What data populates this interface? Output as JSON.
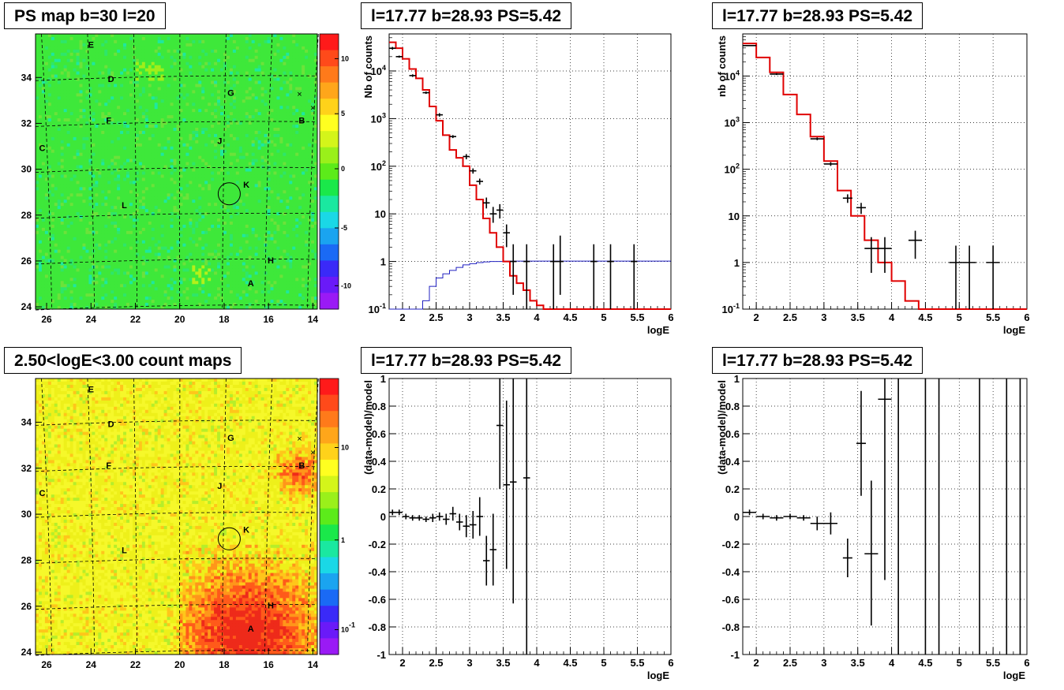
{
  "titles": {
    "map1": "PS map b=30 l=20",
    "spec1": "l=17.77 b=28.93 PS=5.42",
    "spec2": "l=17.77 b=28.93 PS=5.42",
    "map2": "2.50<logE<3.00 count maps",
    "res1": "l=17.77 b=28.93 PS=5.42",
    "res2": "l=17.77 b=28.93 PS=5.42"
  },
  "colors": {
    "model_line": "#e00000",
    "background_line": "#2020c0",
    "data_points": "#000000",
    "grid": "#000000"
  },
  "chart_data": [
    {
      "id": "map1",
      "type": "heatmap",
      "title": "PS map b=30 l=20",
      "x_ticks": [
        "26",
        "24",
        "22",
        "20",
        "18",
        "16",
        "14"
      ],
      "y_ticks": [
        "24",
        "26",
        "28",
        "30",
        "32",
        "34"
      ],
      "xlim": [
        26.5,
        13.8
      ],
      "ylim": [
        23.9,
        35.9
      ],
      "colorbar_ticks": [
        "10",
        "5",
        "0",
        "-5",
        "-10"
      ],
      "colorbar_range": [
        -13,
        13
      ],
      "dominant_color": "green",
      "sources": [
        {
          "label": "A",
          "l": 16.8,
          "b": 24.9
        },
        {
          "label": "B",
          "l": 14.5,
          "b": 32.0
        },
        {
          "label": "C",
          "l": 26.2,
          "b": 30.8
        },
        {
          "label": "D",
          "l": 23.1,
          "b": 33.8
        },
        {
          "label": "E",
          "l": 24.0,
          "b": 35.3
        },
        {
          "label": "F",
          "l": 23.2,
          "b": 32.0
        },
        {
          "label": "G",
          "l": 17.7,
          "b": 33.2
        },
        {
          "label": "H",
          "l": 15.9,
          "b": 25.9
        },
        {
          "label": "J",
          "l": 18.2,
          "b": 31.1
        },
        {
          "label": "K",
          "l": 17.0,
          "b": 29.2
        },
        {
          "label": "L",
          "l": 22.5,
          "b": 28.3
        }
      ],
      "circle": {
        "l": 17.77,
        "b": 28.93
      }
    },
    {
      "id": "spec1",
      "type": "line",
      "title": "l=17.77 b=28.93 PS=5.42",
      "xlabel": "logE",
      "ylabel": "Nb of counts",
      "xlim": [
        1.8,
        6.0
      ],
      "ylim": [
        0.1,
        60000
      ],
      "y_scale": "log",
      "x_ticks": [
        "2",
        "2.5",
        "3",
        "3.5",
        "4",
        "4.5",
        "5",
        "5.5",
        "6"
      ],
      "y_ticks": [
        "10^-1",
        "1",
        "10",
        "10^2",
        "10^3",
        "10^4"
      ],
      "grid": true,
      "model_series": {
        "name": "model",
        "edges": [
          1.8,
          1.9,
          2.0,
          2.1,
          2.2,
          2.3,
          2.4,
          2.5,
          2.6,
          2.7,
          2.8,
          2.9,
          3.0,
          3.1,
          3.2,
          3.3,
          3.4,
          3.5,
          3.6,
          3.7,
          3.8,
          3.9,
          4.0,
          4.1,
          4.2,
          4.3,
          6.0
        ],
        "values": [
          40000,
          30000,
          18000,
          11000,
          7000,
          4000,
          1800,
          900,
          450,
          220,
          150,
          100,
          40,
          20,
          8,
          4,
          2,
          1,
          0.5,
          0.35,
          0.25,
          0.15,
          0.12,
          0.1,
          0.1,
          0.1
        ]
      },
      "background_series": {
        "name": "background",
        "edges": [
          1.8,
          2.3,
          2.4,
          2.5,
          2.6,
          2.7,
          2.8,
          2.9,
          3.0,
          3.1,
          3.2,
          3.3,
          3.5,
          6.0
        ],
        "values": [
          0.1,
          0.15,
          0.3,
          0.45,
          0.55,
          0.65,
          0.75,
          0.85,
          0.9,
          0.95,
          0.98,
          1.0,
          1.02
        ]
      },
      "data_points": [
        {
          "x": 1.85,
          "y": 30000,
          "xerr": 0.05,
          "ylo": 28000,
          "yhi": 32000
        },
        {
          "x": 1.95,
          "y": 20000,
          "xerr": 0.05,
          "ylo": 19000,
          "yhi": 21000
        },
        {
          "x": 2.15,
          "y": 8000,
          "xerr": 0.05,
          "ylo": 7500,
          "yhi": 8500
        },
        {
          "x": 2.35,
          "y": 3500,
          "xerr": 0.05,
          "ylo": 3300,
          "yhi": 3700
        },
        {
          "x": 2.55,
          "y": 1200,
          "xerr": 0.05,
          "ylo": 1100,
          "yhi": 1300
        },
        {
          "x": 2.75,
          "y": 420,
          "xerr": 0.05,
          "ylo": 390,
          "yhi": 450
        },
        {
          "x": 2.95,
          "y": 160,
          "xerr": 0.05,
          "ylo": 140,
          "yhi": 180
        },
        {
          "x": 3.05,
          "y": 80,
          "xerr": 0.05,
          "ylo": 70,
          "yhi": 90
        },
        {
          "x": 3.15,
          "y": 48,
          "xerr": 0.05,
          "ylo": 41,
          "yhi": 55
        },
        {
          "x": 3.25,
          "y": 17,
          "xerr": 0.05,
          "ylo": 13,
          "yhi": 22
        },
        {
          "x": 3.35,
          "y": 10,
          "xerr": 0.05,
          "ylo": 6.5,
          "yhi": 14
        },
        {
          "x": 3.45,
          "y": 12,
          "xerr": 0.05,
          "ylo": 8,
          "yhi": 16
        },
        {
          "x": 3.55,
          "y": 4,
          "xerr": 0.05,
          "ylo": 2,
          "yhi": 6
        },
        {
          "x": 3.65,
          "y": 1,
          "xerr": 0.05,
          "ylo": 0.2,
          "yhi": 2.3
        },
        {
          "x": 3.85,
          "y": 1,
          "xerr": 0.05,
          "ylo": 0.1,
          "yhi": 2.3
        },
        {
          "x": 4.25,
          "y": 1,
          "xerr": 0.05,
          "ylo": 0.1,
          "yhi": 2.3
        },
        {
          "x": 4.35,
          "y": 1,
          "xerr": 0.05,
          "ylo": 0.2,
          "yhi": 3.5
        },
        {
          "x": 4.85,
          "y": 1,
          "xerr": 0.05,
          "ylo": 0.1,
          "yhi": 2.3
        },
        {
          "x": 5.1,
          "y": 1,
          "xerr": 0.05,
          "ylo": 0.1,
          "yhi": 2.3
        },
        {
          "x": 5.45,
          "y": 1,
          "xerr": 0.05,
          "ylo": 0.1,
          "yhi": 2.3
        }
      ]
    },
    {
      "id": "spec2",
      "type": "line",
      "title": "l=17.77 b=28.93 PS=5.42",
      "xlabel": "logE",
      "ylabel": "nb of counts",
      "xlim": [
        1.8,
        6.0
      ],
      "ylim": [
        0.1,
        80000
      ],
      "y_scale": "log",
      "x_ticks": [
        "2",
        "2.5",
        "3",
        "3.5",
        "4",
        "4.5",
        "5",
        "5.5",
        "6"
      ],
      "y_ticks": [
        "10^-1",
        "1",
        "10",
        "10^2",
        "10^3",
        "10^4"
      ],
      "grid": true,
      "model_series": {
        "name": "model",
        "edges": [
          1.8,
          2.0,
          2.2,
          2.4,
          2.6,
          2.8,
          3.0,
          3.2,
          3.4,
          3.6,
          3.8,
          4.0,
          4.2,
          4.4,
          6.0
        ],
        "values": [
          50000,
          25000,
          12000,
          4000,
          1500,
          500,
          150,
          35,
          10,
          3,
          1,
          0.4,
          0.15,
          0.1
        ]
      },
      "data_points": [
        {
          "x": 1.9,
          "y": 45000,
          "xerr": 0.1,
          "ylo": 44000,
          "yhi": 46000
        },
        {
          "x": 2.3,
          "y": 11000,
          "xerr": 0.1,
          "ylo": 10500,
          "yhi": 11500
        },
        {
          "x": 2.9,
          "y": 450,
          "xerr": 0.1,
          "ylo": 420,
          "yhi": 480
        },
        {
          "x": 3.1,
          "y": 130,
          "xerr": 0.1,
          "ylo": 118,
          "yhi": 142
        },
        {
          "x": 3.35,
          "y": 24,
          "xerr": 0.07,
          "ylo": 19,
          "yhi": 29
        },
        {
          "x": 3.55,
          "y": 15,
          "xerr": 0.07,
          "ylo": 11,
          "yhi": 19
        },
        {
          "x": 3.7,
          "y": 2,
          "xerr": 0.1,
          "ylo": 0.6,
          "yhi": 3.5
        },
        {
          "x": 3.9,
          "y": 2,
          "xerr": 0.1,
          "ylo": 0.6,
          "yhi": 3.5
        },
        {
          "x": 4.35,
          "y": 3,
          "xerr": 0.1,
          "ylo": 1.2,
          "yhi": 4.8
        },
        {
          "x": 4.95,
          "y": 1,
          "xerr": 0.1,
          "ylo": 0.1,
          "yhi": 2.3
        },
        {
          "x": 5.15,
          "y": 1,
          "xerr": 0.1,
          "ylo": 0.1,
          "yhi": 2.3
        },
        {
          "x": 5.5,
          "y": 1,
          "xerr": 0.1,
          "ylo": 0.1,
          "yhi": 2.3
        }
      ]
    },
    {
      "id": "map2",
      "type": "heatmap",
      "title": "2.50<logE<3.00 count maps",
      "x_ticks": [
        "26",
        "24",
        "22",
        "20",
        "18",
        "16",
        "14"
      ],
      "y_ticks": [
        "24",
        "26",
        "28",
        "30",
        "32",
        "34"
      ],
      "xlim": [
        26.5,
        13.8
      ],
      "ylim": [
        23.9,
        35.9
      ],
      "colorbar_ticks": [
        "10",
        "1",
        "10^-1"
      ],
      "colorbar_scale": "log",
      "dominant_color": "yellow",
      "sources": [
        {
          "label": "A",
          "l": 16.8,
          "b": 24.9
        },
        {
          "label": "B",
          "l": 14.5,
          "b": 32.0
        },
        {
          "label": "C",
          "l": 26.2,
          "b": 30.8
        },
        {
          "label": "D",
          "l": 23.1,
          "b": 33.8
        },
        {
          "label": "E",
          "l": 24.0,
          "b": 35.3
        },
        {
          "label": "F",
          "l": 23.2,
          "b": 32.0
        },
        {
          "label": "G",
          "l": 17.7,
          "b": 33.2
        },
        {
          "label": "H",
          "l": 15.9,
          "b": 25.9
        },
        {
          "label": "J",
          "l": 18.2,
          "b": 31.1
        },
        {
          "label": "K",
          "l": 17.0,
          "b": 29.2
        },
        {
          "label": "L",
          "l": 22.5,
          "b": 28.3
        }
      ],
      "circle": {
        "l": 17.77,
        "b": 28.93
      }
    },
    {
      "id": "res1",
      "type": "scatter",
      "title": "l=17.77 b=28.93 PS=5.42",
      "xlabel": "logE",
      "ylabel": "(data-model)/model",
      "xlim": [
        1.8,
        6.0
      ],
      "ylim": [
        -1,
        1
      ],
      "x_ticks": [
        "2",
        "2.5",
        "3",
        "3.5",
        "4",
        "4.5",
        "5",
        "5.5",
        "6"
      ],
      "y_ticks": [
        "-1",
        "-0.8",
        "-0.6",
        "-0.4",
        "-0.2",
        "0",
        "0.2",
        "0.4",
        "0.6",
        "0.8",
        "1"
      ],
      "grid": true,
      "data_points": [
        {
          "x": 1.85,
          "y": 0.03,
          "xerr": 0.05,
          "ylo": 0.01,
          "yhi": 0.05
        },
        {
          "x": 1.95,
          "y": 0.03,
          "xerr": 0.05,
          "ylo": 0.01,
          "yhi": 0.05
        },
        {
          "x": 2.05,
          "y": 0.0,
          "xerr": 0.05,
          "ylo": -0.02,
          "yhi": 0.02
        },
        {
          "x": 2.15,
          "y": -0.01,
          "xerr": 0.05,
          "ylo": -0.03,
          "yhi": 0.01
        },
        {
          "x": 2.25,
          "y": -0.01,
          "xerr": 0.05,
          "ylo": -0.03,
          "yhi": 0.01
        },
        {
          "x": 2.35,
          "y": -0.02,
          "xerr": 0.05,
          "ylo": -0.04,
          "yhi": 0.0
        },
        {
          "x": 2.45,
          "y": -0.01,
          "xerr": 0.05,
          "ylo": -0.04,
          "yhi": 0.02
        },
        {
          "x": 2.55,
          "y": 0.0,
          "xerr": 0.05,
          "ylo": -0.03,
          "yhi": 0.03
        },
        {
          "x": 2.65,
          "y": -0.02,
          "xerr": 0.05,
          "ylo": -0.06,
          "yhi": 0.02
        },
        {
          "x": 2.75,
          "y": 0.02,
          "xerr": 0.05,
          "ylo": -0.03,
          "yhi": 0.07
        },
        {
          "x": 2.85,
          "y": -0.04,
          "xerr": 0.05,
          "ylo": -0.1,
          "yhi": 0.02
        },
        {
          "x": 2.95,
          "y": -0.07,
          "xerr": 0.05,
          "ylo": -0.15,
          "yhi": 0.01
        },
        {
          "x": 3.05,
          "y": -0.06,
          "xerr": 0.05,
          "ylo": -0.16,
          "yhi": 0.04
        },
        {
          "x": 3.15,
          "y": 0.0,
          "xerr": 0.05,
          "ylo": -0.14,
          "yhi": 0.14
        },
        {
          "x": 3.25,
          "y": -0.32,
          "xerr": 0.05,
          "ylo": -0.5,
          "yhi": -0.14
        },
        {
          "x": 3.35,
          "y": -0.24,
          "xerr": 0.05,
          "ylo": -0.5,
          "yhi": 0.02
        },
        {
          "x": 3.45,
          "y": 0.66,
          "xerr": 0.05,
          "ylo": 0.2,
          "yhi": 1.0
        },
        {
          "x": 3.55,
          "y": 0.23,
          "xerr": 0.05,
          "ylo": -0.38,
          "yhi": 0.84
        },
        {
          "x": 3.65,
          "y": 0.25,
          "xerr": 0.05,
          "ylo": -0.63,
          "yhi": 1.0
        },
        {
          "x": 3.85,
          "y": 0.28,
          "xerr": 0.05,
          "ylo": -1.0,
          "yhi": 1.0
        }
      ]
    },
    {
      "id": "res2",
      "type": "scatter",
      "title": "l=17.77 b=28.93 PS=5.42",
      "xlabel": "logE",
      "ylabel": "(data-model)/model",
      "xlim": [
        1.8,
        6.0
      ],
      "ylim": [
        -1,
        1
      ],
      "x_ticks": [
        "2",
        "2.5",
        "3",
        "3.5",
        "4",
        "4.5",
        "5",
        "5.5",
        "6"
      ],
      "y_ticks": [
        "-1",
        "-0.8",
        "-0.6",
        "-0.4",
        "-0.2",
        "0",
        "0.2",
        "0.4",
        "0.6",
        "0.8",
        "1"
      ],
      "grid": true,
      "data_points": [
        {
          "x": 1.9,
          "y": 0.03,
          "xerr": 0.1,
          "ylo": 0.01,
          "yhi": 0.05
        },
        {
          "x": 2.1,
          "y": 0.0,
          "xerr": 0.1,
          "ylo": -0.02,
          "yhi": 0.02
        },
        {
          "x": 2.3,
          "y": -0.01,
          "xerr": 0.1,
          "ylo": -0.03,
          "yhi": 0.01
        },
        {
          "x": 2.5,
          "y": 0.0,
          "xerr": 0.1,
          "ylo": -0.02,
          "yhi": 0.02
        },
        {
          "x": 2.7,
          "y": -0.01,
          "xerr": 0.1,
          "ylo": -0.03,
          "yhi": 0.01
        },
        {
          "x": 2.9,
          "y": -0.05,
          "xerr": 0.1,
          "ylo": -0.1,
          "yhi": 0.0
        },
        {
          "x": 3.1,
          "y": -0.05,
          "xerr": 0.1,
          "ylo": -0.13,
          "yhi": 0.03
        },
        {
          "x": 3.35,
          "y": -0.3,
          "xerr": 0.07,
          "ylo": -0.44,
          "yhi": -0.16
        },
        {
          "x": 3.55,
          "y": 0.53,
          "xerr": 0.07,
          "ylo": 0.15,
          "yhi": 0.91
        },
        {
          "x": 3.7,
          "y": -0.27,
          "xerr": 0.1,
          "ylo": -0.79,
          "yhi": 0.26
        },
        {
          "x": 3.9,
          "y": 0.85,
          "xerr": 0.1,
          "ylo": -0.46,
          "yhi": 1.0
        },
        {
          "x": 4.1,
          "y": 1.5,
          "xerr": 0.0,
          "ylo": -1.0,
          "yhi": 1.0
        },
        {
          "x": 4.5,
          "y": 1.5,
          "xerr": 0.0,
          "ylo": -1.0,
          "yhi": 1.0
        },
        {
          "x": 4.7,
          "y": 1.5,
          "xerr": 0.0,
          "ylo": -1.0,
          "yhi": 1.0
        },
        {
          "x": 5.3,
          "y": 1.5,
          "xerr": 0.0,
          "ylo": -1.0,
          "yhi": 1.0
        },
        {
          "x": 5.7,
          "y": 1.5,
          "xerr": 0.0,
          "ylo": -1.0,
          "yhi": 1.0
        },
        {
          "x": 5.9,
          "y": 1.5,
          "xerr": 0.0,
          "ylo": -1.0,
          "yhi": 1.0
        }
      ]
    }
  ]
}
